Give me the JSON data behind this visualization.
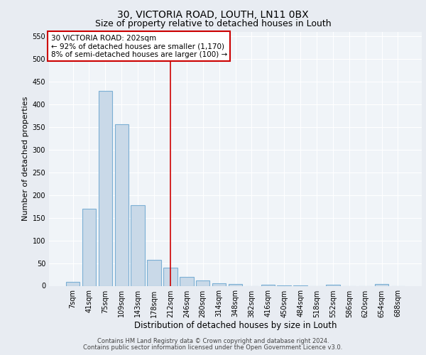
{
  "title1": "30, VICTORIA ROAD, LOUTH, LN11 0BX",
  "title2": "Size of property relative to detached houses in Louth",
  "xlabel": "Distribution of detached houses by size in Louth",
  "ylabel": "Number of detached properties",
  "categories": [
    "7sqm",
    "41sqm",
    "75sqm",
    "109sqm",
    "143sqm",
    "178sqm",
    "212sqm",
    "246sqm",
    "280sqm",
    "314sqm",
    "348sqm",
    "382sqm",
    "416sqm",
    "450sqm",
    "484sqm",
    "518sqm",
    "552sqm",
    "586sqm",
    "620sqm",
    "654sqm",
    "688sqm"
  ],
  "values": [
    8,
    170,
    430,
    356,
    178,
    57,
    40,
    20,
    12,
    5,
    4,
    0,
    2,
    1,
    1,
    0,
    3,
    0,
    0,
    4,
    0
  ],
  "bar_color": "#c9d9e8",
  "bar_edge_color": "#7bafd4",
  "vline_x": 6,
  "vline_color": "#cc0000",
  "annotation_text": "30 VICTORIA ROAD: 202sqm\n← 92% of detached houses are smaller (1,170)\n8% of semi-detached houses are larger (100) →",
  "annotation_box_color": "#ffffff",
  "annotation_box_edge_color": "#cc0000",
  "ylim": [
    0,
    560
  ],
  "yticks": [
    0,
    50,
    100,
    150,
    200,
    250,
    300,
    350,
    400,
    450,
    500,
    550
  ],
  "footer1": "Contains HM Land Registry data © Crown copyright and database right 2024.",
  "footer2": "Contains public sector information licensed under the Open Government Licence v3.0.",
  "bg_color": "#e8ecf2",
  "plot_bg_color": "#f0f4f8",
  "title_fontsize": 10,
  "subtitle_fontsize": 9,
  "ylabel_fontsize": 8,
  "xlabel_fontsize": 8.5,
  "tick_fontsize": 7,
  "footer_fontsize": 6,
  "ann_fontsize": 7.5
}
